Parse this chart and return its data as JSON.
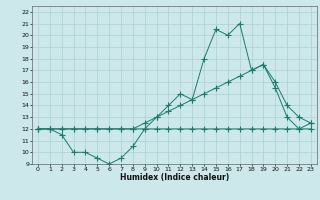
{
  "title": "",
  "xlabel": "Humidex (Indice chaleur)",
  "xlim": [
    -0.5,
    23.5
  ],
  "ylim": [
    9,
    22.5
  ],
  "xticks": [
    0,
    1,
    2,
    3,
    4,
    5,
    6,
    7,
    8,
    9,
    10,
    11,
    12,
    13,
    14,
    15,
    16,
    17,
    18,
    19,
    20,
    21,
    22,
    23
  ],
  "yticks": [
    9,
    10,
    11,
    12,
    13,
    14,
    15,
    16,
    17,
    18,
    19,
    20,
    21,
    22
  ],
  "bg_color": "#cce8ea",
  "grid_color": "#aad0d4",
  "line_color": "#1a7a6e",
  "line1_x": [
    0,
    1,
    2,
    3,
    4,
    5,
    6,
    7,
    8,
    9,
    10,
    11,
    12,
    13,
    14,
    15,
    16,
    17,
    18,
    19,
    20,
    21,
    22,
    23
  ],
  "line1_y": [
    12,
    12,
    11.5,
    10,
    10,
    9.5,
    9,
    9.5,
    10.5,
    12,
    13,
    14,
    15,
    14.5,
    18,
    20.5,
    20,
    21,
    17,
    17.5,
    15.5,
    13,
    12,
    12
  ],
  "line2_x": [
    0,
    1,
    2,
    3,
    4,
    5,
    6,
    7,
    8,
    9,
    10,
    11,
    12,
    13,
    14,
    15,
    16,
    17,
    18,
    19,
    20,
    21,
    22,
    23
  ],
  "line2_y": [
    12,
    12,
    12,
    12,
    12,
    12,
    12,
    12,
    12,
    12.5,
    13,
    13.5,
    14,
    14.5,
    15,
    15.5,
    16,
    16.5,
    17,
    17.5,
    16,
    14,
    13,
    12.5
  ],
  "line3_x": [
    0,
    1,
    2,
    3,
    4,
    5,
    6,
    7,
    8,
    9,
    10,
    11,
    12,
    13,
    14,
    15,
    16,
    17,
    18,
    19,
    20,
    21,
    22,
    23
  ],
  "line3_y": [
    12,
    12,
    12,
    12,
    12,
    12,
    12,
    12,
    12,
    12,
    12,
    12,
    12,
    12,
    12,
    12,
    12,
    12,
    12,
    12,
    12,
    12,
    12,
    12.5
  ]
}
